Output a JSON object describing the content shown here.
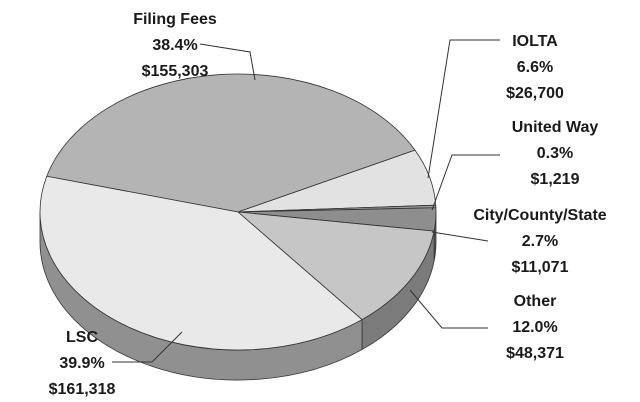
{
  "chart_data": {
    "type": "pie",
    "categories": [
      "Filing Fees",
      "IOLTA",
      "United Way",
      "City/County/State",
      "Other",
      "LSC"
    ],
    "values": [
      38.4,
      6.6,
      0.3,
      2.7,
      12.0,
      39.9
    ],
    "value_labels": [
      "38.4%",
      "6.6%",
      "0.3%",
      "2.7%",
      "12.0%",
      "39.9%"
    ],
    "amounts": [
      155303,
      26700,
      1219,
      11071,
      48371,
      161318
    ],
    "amount_labels": [
      "$155,303",
      "$26,700",
      "$1,219",
      "$11,071",
      "$48,371",
      "$161,318"
    ],
    "colors": [
      "#b4b4b4",
      "#e2e2e2",
      "#9a9a9a",
      "#8e8e8e",
      "#c6c6c6",
      "#e9e9e9"
    ]
  }
}
